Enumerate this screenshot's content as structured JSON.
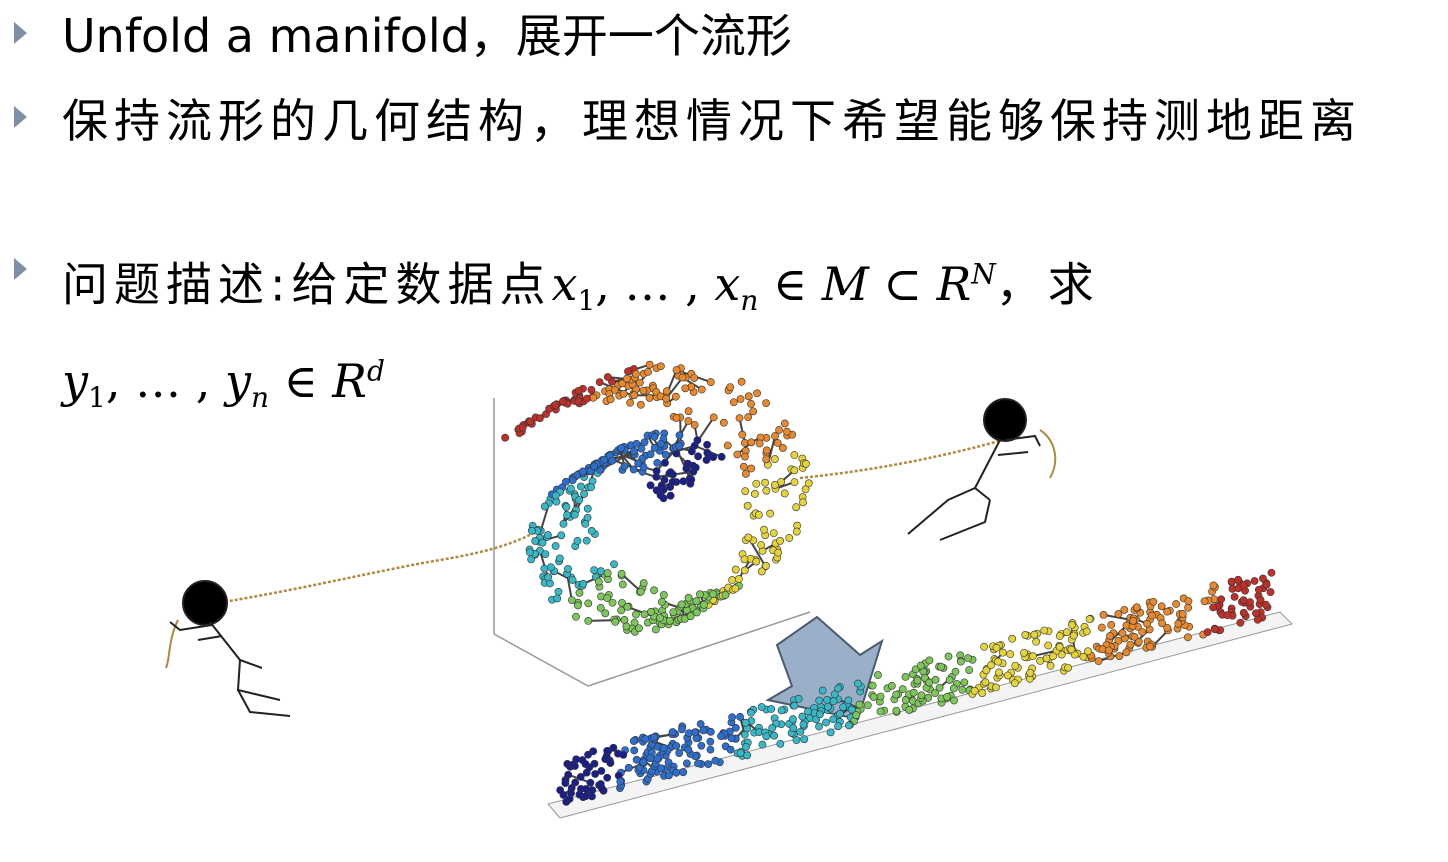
{
  "bullets": [
    {
      "text": "Unfold a manifold，展开一个流形"
    },
    {
      "text": "保持流形的几何结构，理想情况下希望能够保持测地距离"
    },
    {
      "prefix": "问题描述:给定数据点",
      "x": "x",
      "sub1": "1",
      "dots": ", … , ",
      "sub_n": "n",
      "in_M": " ∈ M ⊂ R",
      "sup_N": "N",
      "qiu": "，求",
      "y": "y",
      "in_R": " ∈ R",
      "sup_d": "d"
    }
  ],
  "figure": {
    "description_icons": [
      "stick-figure-left-icon",
      "stick-figure-right-icon",
      "down-arrow-icon"
    ],
    "colors": {
      "blue": "#1e2a8c",
      "cyan": "#36b8c9",
      "green": "#7cc65a",
      "yellow": "#e5d33a",
      "orange": "#e8892e",
      "red": "#c0302a",
      "edge": "#444444",
      "rope": "#b08a40"
    }
  }
}
